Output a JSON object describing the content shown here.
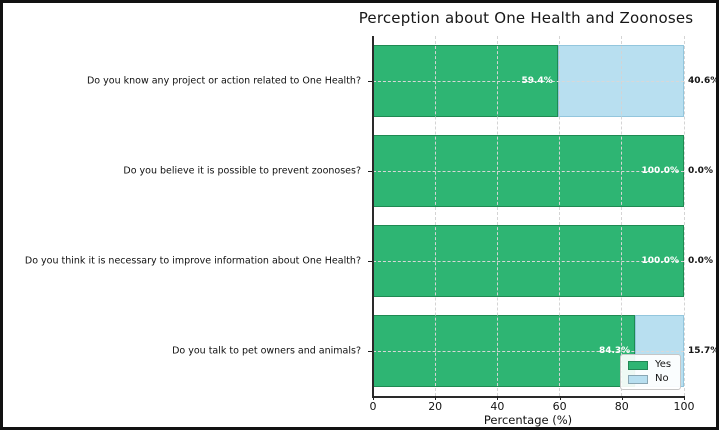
{
  "figure": {
    "title": "Perception about One Health and Zoonoses"
  },
  "chart_data": {
    "type": "bar",
    "orientation": "horizontal",
    "stacked": true,
    "title": "Perception about One Health and Zoonoses",
    "xlabel": "Percentage (%)",
    "ylabel": "",
    "xlim": [
      0,
      100
    ],
    "xticks": [
      0,
      20,
      40,
      60,
      80,
      100
    ],
    "grid": true,
    "grid_style": "dashed",
    "legend_position": "lower right",
    "categories": [
      "Do you know any project or action related to One Health?",
      "Do you believe it is possible to prevent zoonoses?",
      "Do you think it is necessary to improve information about One Health?",
      "Do you talk to pet owners and animals?"
    ],
    "series": [
      {
        "name": "Yes",
        "color": "#2eb573",
        "edge_color": "#1f8a52",
        "label_color": "#ffffff",
        "values": [
          59.4,
          100.0,
          100.0,
          84.3
        ],
        "value_labels": [
          "59.4%",
          "100.0%",
          "100.0%",
          "84.3%"
        ]
      },
      {
        "name": "No",
        "color": "#b8dff0",
        "edge_color": "#93c6dd",
        "label_color": "#151515",
        "values": [
          40.6,
          0.0,
          0.0,
          15.7
        ],
        "value_labels": [
          "40.6%",
          "0.0%",
          "0.0%",
          "15.7%"
        ]
      }
    ]
  }
}
